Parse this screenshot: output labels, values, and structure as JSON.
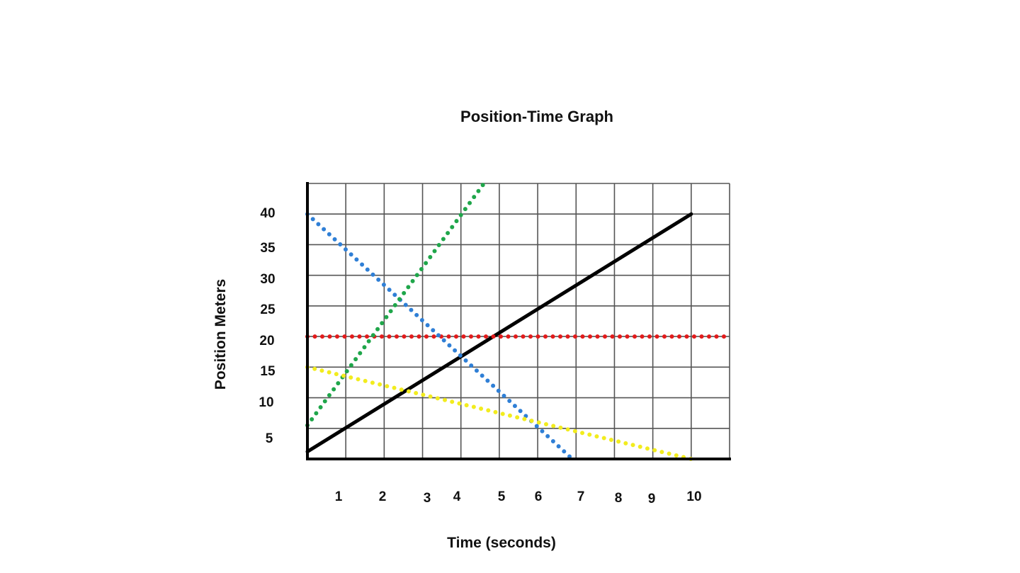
{
  "chart_data": {
    "type": "line",
    "title": "Position-Time Graph",
    "xlabel": "Time (seconds)",
    "ylabel": "Position Meters",
    "x_tick_labels": [
      "1",
      "2",
      "3",
      "4",
      "5",
      "6",
      "7",
      "8",
      "9",
      "10"
    ],
    "y_tick_labels": [
      "5",
      "10",
      "15",
      "20",
      "25",
      "30",
      "35",
      "40"
    ],
    "xlim": [
      0,
      11
    ],
    "ylim": [
      0,
      45
    ],
    "grid": true,
    "legend": "none",
    "series": [
      {
        "color": "#000000",
        "style": "solid",
        "points": [
          [
            0,
            1.2
          ],
          [
            10,
            40
          ]
        ]
      },
      {
        "color": "#e21b1b",
        "style": "dotted",
        "points": [
          [
            0,
            20
          ],
          [
            11,
            20
          ]
        ]
      },
      {
        "color": "#2f7fd6",
        "style": "dotted",
        "points": [
          [
            0,
            40
          ],
          [
            6.9,
            0
          ]
        ]
      },
      {
        "color": "#1fa64a",
        "style": "dotted",
        "points": [
          [
            0,
            5.5
          ],
          [
            4.6,
            45
          ]
        ]
      },
      {
        "color": "#f2ec1e",
        "style": "dotted",
        "points": [
          [
            0,
            15
          ],
          [
            10,
            0
          ]
        ]
      }
    ]
  }
}
